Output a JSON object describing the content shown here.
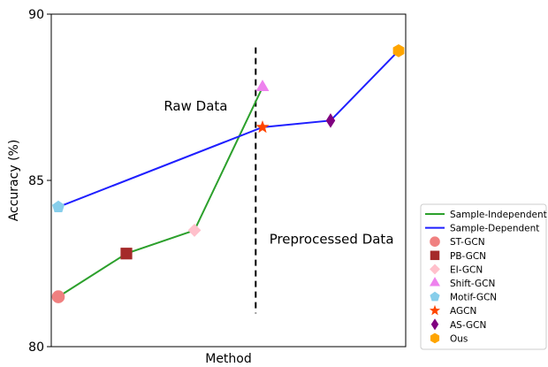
{
  "chart_data": {
    "type": "line",
    "xlabel": "Method",
    "ylabel": "Accuracy (%)",
    "ylim": [
      80,
      90
    ],
    "yticks": [
      "80",
      "85",
      "90"
    ],
    "xlim": [
      0,
      10
    ],
    "grid": false,
    "legend_position": "outside-right",
    "series": [
      {
        "name": "Sample-Independent",
        "color": "#2ca02c",
        "points": [
          {
            "label": "ST-GCN",
            "x": 0,
            "y": 81.5
          },
          {
            "label": "PB-GCN",
            "x": 2,
            "y": 82.8
          },
          {
            "label": "EI-GCN",
            "x": 4,
            "y": 83.5
          },
          {
            "label": "Shift-GCN",
            "x": 6,
            "y": 87.8
          }
        ]
      },
      {
        "name": "Sample-Dependent",
        "color": "#1f1fff",
        "points": [
          {
            "label": "Motif-GCN",
            "x": 0,
            "y": 84.2
          },
          {
            "label": "AGCN",
            "x": 6,
            "y": 86.6
          },
          {
            "label": "AS-GCN",
            "x": 8,
            "y": 86.8
          },
          {
            "label": "Ous",
            "x": 10,
            "y": 88.9
          }
        ]
      }
    ],
    "markers": [
      {
        "name": "ST-GCN",
        "shape": "circle",
        "color": "#f08080",
        "x": 0,
        "y": 81.5
      },
      {
        "name": "PB-GCN",
        "shape": "square",
        "color": "#a52a2a",
        "x": 2,
        "y": 82.8
      },
      {
        "name": "EI-GCN",
        "shape": "diamond",
        "color": "#ffc0cb",
        "x": 4,
        "y": 83.5
      },
      {
        "name": "Shift-GCN",
        "shape": "triangle",
        "color": "#ee82ee",
        "x": 6,
        "y": 87.8
      },
      {
        "name": "Motif-GCN",
        "shape": "pentagon",
        "color": "#87ceeb",
        "x": 0,
        "y": 84.2
      },
      {
        "name": "AGCN",
        "shape": "star",
        "color": "#ff4500",
        "x": 6,
        "y": 86.6
      },
      {
        "name": "AS-GCN",
        "shape": "thin-diamond",
        "color": "#800080",
        "x": 8,
        "y": 86.8
      },
      {
        "name": "Ous",
        "shape": "hexagon",
        "color": "#ffa500",
        "x": 10,
        "y": 88.9
      }
    ],
    "divider": {
      "x": 5.8,
      "y_range": [
        81,
        89
      ],
      "style": "dashed",
      "color": "#000000"
    },
    "annotations": [
      {
        "text": "Raw Data",
        "x": 3.1,
        "y": 87.1
      },
      {
        "text": "Preprocessed Data",
        "x": 6.2,
        "y": 83.1
      }
    ],
    "legend": [
      {
        "label": "Sample-Independent",
        "kind": "line",
        "color": "#2ca02c"
      },
      {
        "label": "Sample-Dependent",
        "kind": "line",
        "color": "#1f1fff"
      },
      {
        "label": "ST-GCN",
        "kind": "marker",
        "shape": "circle",
        "color": "#f08080"
      },
      {
        "label": "PB-GCN",
        "kind": "marker",
        "shape": "square",
        "color": "#a52a2a"
      },
      {
        "label": "EI-GCN",
        "kind": "marker",
        "shape": "diamond",
        "color": "#ffc0cb"
      },
      {
        "label": "Shift-GCN",
        "kind": "marker",
        "shape": "triangle",
        "color": "#ee82ee"
      },
      {
        "label": "Motif-GCN",
        "kind": "marker",
        "shape": "pentagon",
        "color": "#87ceeb"
      },
      {
        "label": "AGCN",
        "kind": "marker",
        "shape": "star",
        "color": "#ff4500"
      },
      {
        "label": "AS-GCN",
        "kind": "marker",
        "shape": "thin-diamond",
        "color": "#800080"
      },
      {
        "label": "Ous",
        "kind": "marker",
        "shape": "hexagon",
        "color": "#ffa500"
      }
    ]
  }
}
